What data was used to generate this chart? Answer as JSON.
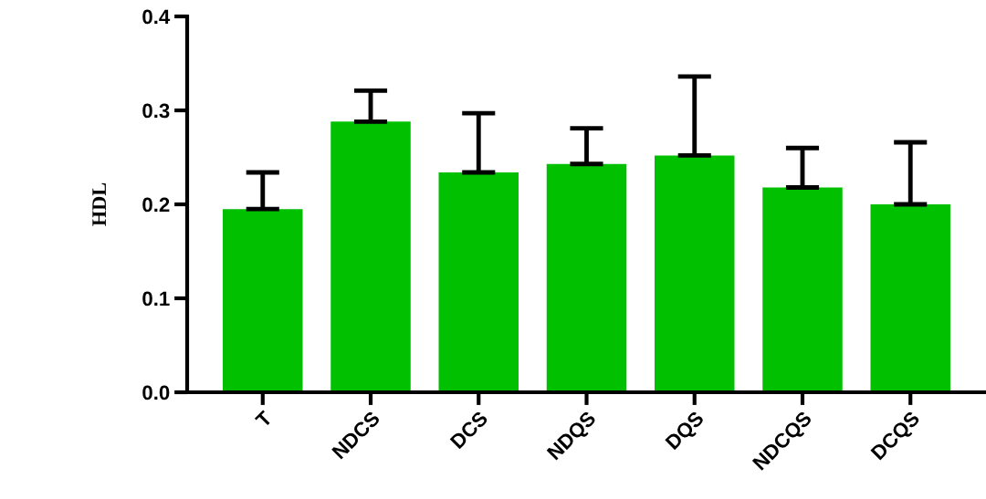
{
  "chart_data": {
    "type": "bar",
    "ylabel": "HDL",
    "categories": [
      "T",
      "NDCS",
      "DCS",
      "NDQS",
      "DQS",
      "NDCQS",
      "DCQS"
    ],
    "values": [
      0.195,
      0.288,
      0.234,
      0.243,
      0.252,
      0.218,
      0.2
    ],
    "errors": [
      [
        0.195,
        0.234
      ],
      [
        0.288,
        0.321
      ],
      [
        0.234,
        0.297
      ],
      [
        0.243,
        0.281
      ],
      [
        0.252,
        0.336
      ],
      [
        0.218,
        0.26
      ],
      [
        0.2,
        0.266
      ]
    ],
    "color": "#00c000",
    "ylim": [
      0,
      0.4
    ],
    "yticks": [
      {
        "value": 0,
        "label": "0.0"
      },
      0.1,
      0.2,
      0.3,
      0.4
    ],
    "grid": false,
    "legend": false
  }
}
